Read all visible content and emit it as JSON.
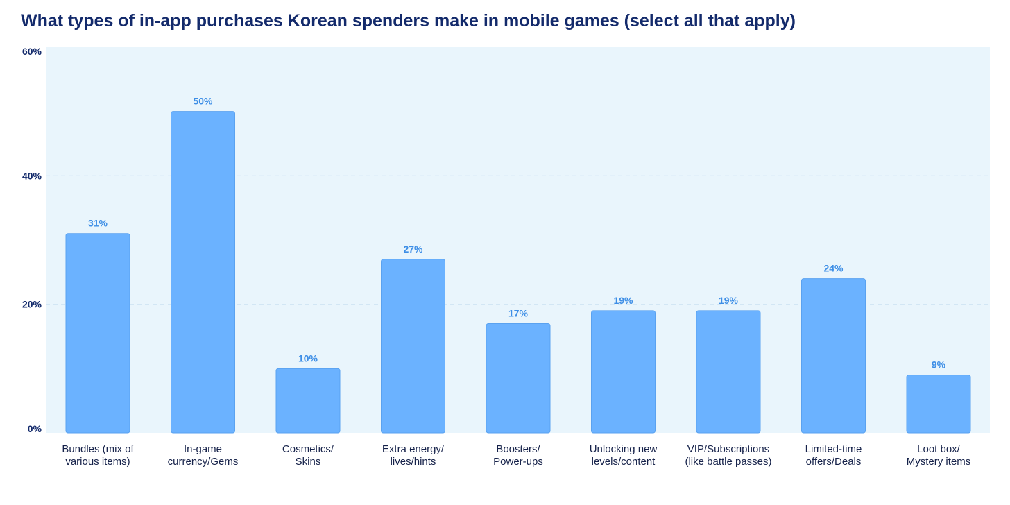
{
  "chart_data": {
    "type": "bar",
    "title": "What types of in-app purchases Korean spenders make in mobile games (select all that apply)",
    "xlabel": "",
    "ylabel": "",
    "ylim": [
      0,
      60
    ],
    "yticks": [
      0,
      20,
      40,
      60
    ],
    "ytick_labels": [
      "0%",
      "20%",
      "40%",
      "60%"
    ],
    "grid": true,
    "legend": "none",
    "categories": [
      [
        "Bundles (mix of",
        "various items)"
      ],
      [
        "In-game",
        "currency/Gems"
      ],
      [
        "Cosmetics/",
        "Skins"
      ],
      [
        "Extra energy/",
        "lives/hints"
      ],
      [
        "Boosters/",
        "Power-ups"
      ],
      [
        "Unlocking new",
        "levels/content"
      ],
      [
        "VIP/Subscriptions",
        "(like battle passes)"
      ],
      [
        "Limited-time",
        "offers/Deals"
      ],
      [
        "Loot box/",
        "Mystery items"
      ]
    ],
    "values": [
      31,
      50,
      10,
      27,
      17,
      19,
      19,
      24,
      9
    ],
    "value_labels": [
      "31%",
      "50%",
      "10%",
      "27%",
      "17%",
      "19%",
      "19%",
      "24%",
      "9%"
    ],
    "colors": {
      "bar": "#6bb2ff",
      "bar_edge": "#5aa2f0",
      "plot_bg": "#e9f5fc",
      "grid": "#cfe4f3",
      "data_label": "#3d8ee6",
      "title": "#132a6b"
    }
  }
}
